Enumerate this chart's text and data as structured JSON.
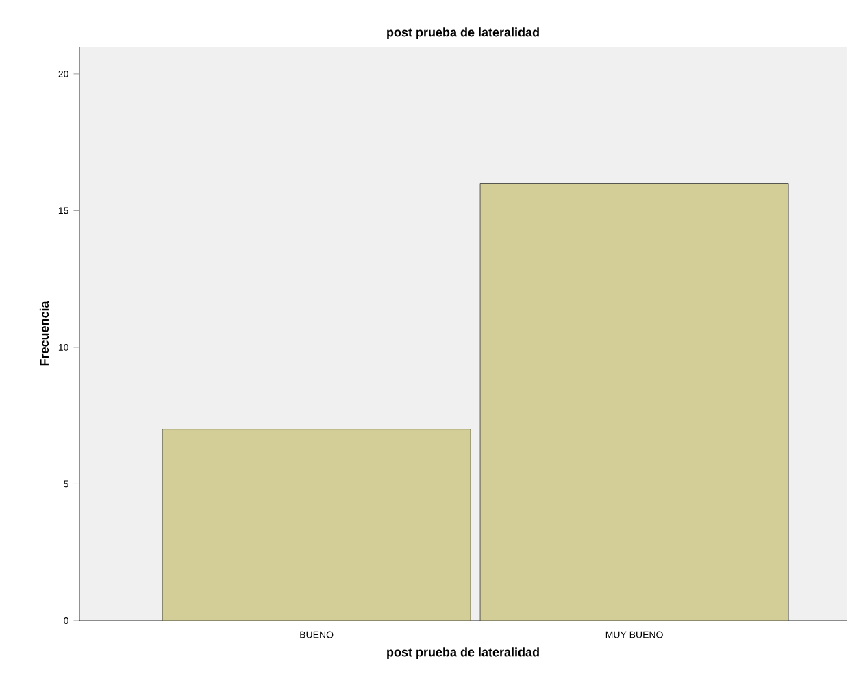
{
  "chart_data": {
    "type": "bar",
    "title": "post prueba de lateralidad",
    "xlabel": "post prueba de lateralidad",
    "ylabel": "Frecuencia",
    "categories": [
      "BUENO",
      "MUY BUENO"
    ],
    "values": [
      7,
      16
    ],
    "color": "#d3ce97",
    "ylim": [
      0,
      21
    ],
    "yticks": [
      0,
      5,
      10,
      15,
      20
    ],
    "grid": false
  }
}
